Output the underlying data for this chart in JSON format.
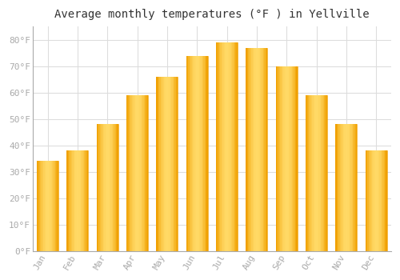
{
  "title": "Average monthly temperatures (°F ) in Yellville",
  "months": [
    "Jan",
    "Feb",
    "Mar",
    "Apr",
    "May",
    "Jun",
    "Jul",
    "Aug",
    "Sep",
    "Oct",
    "Nov",
    "Dec"
  ],
  "values": [
    34,
    38,
    48,
    59,
    66,
    74,
    79,
    77,
    70,
    59,
    48,
    38
  ],
  "bar_color_center": "#FFD966",
  "bar_color_edge": "#F0A000",
  "background_color": "#FFFFFF",
  "plot_bg_color": "#FFFFFF",
  "grid_color": "#DDDDDD",
  "yticks": [
    0,
    10,
    20,
    30,
    40,
    50,
    60,
    70,
    80
  ],
  "ylim": [
    0,
    85
  ],
  "title_fontsize": 10,
  "tick_fontsize": 8,
  "tick_color": "#AAAAAA",
  "title_color": "#333333"
}
